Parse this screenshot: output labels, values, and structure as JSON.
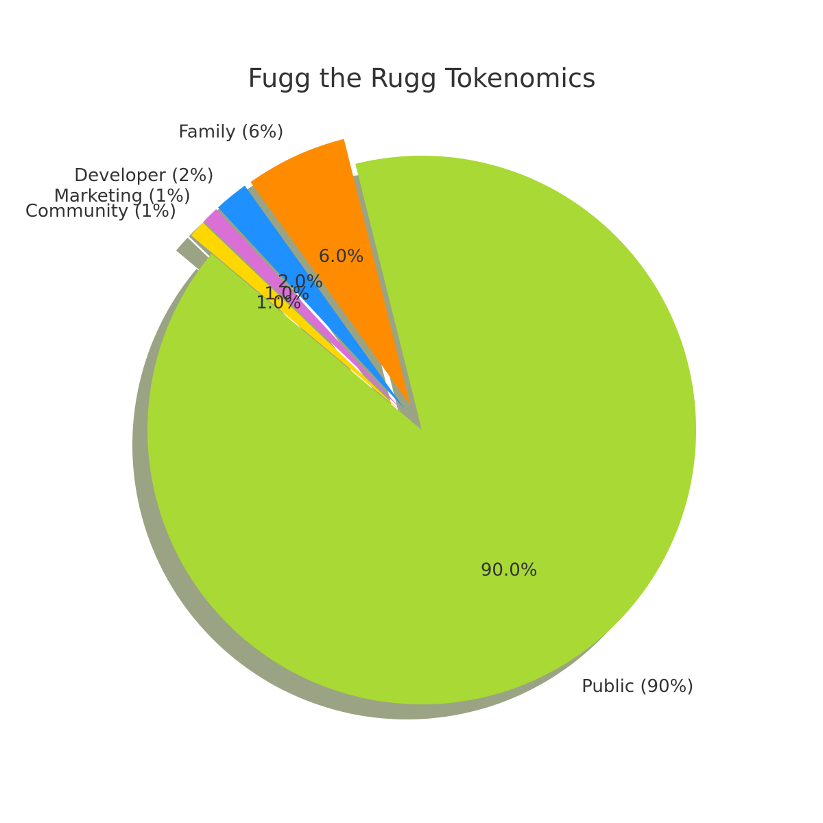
{
  "chart_data": {
    "type": "pie",
    "title": "Fugg the Rugg Tokenomics",
    "slices": [
      {
        "category": "Public",
        "value": 90,
        "label": "Public (90%)",
        "pct_label": "90.0%",
        "color": "#A8D935",
        "exploded": false
      },
      {
        "category": "Family",
        "value": 6,
        "label": "Family (6%)",
        "pct_label": "6.0%",
        "color": "#FF8C00",
        "exploded": true
      },
      {
        "category": "Developer",
        "value": 2,
        "label": "Developer (2%)",
        "pct_label": "2.0%",
        "color": "#1E90FF",
        "exploded": true
      },
      {
        "category": "Marketing",
        "value": 1,
        "label": "Marketing (1%)",
        "pct_label": "1.0%",
        "color": "#DA70D6",
        "exploded": true
      },
      {
        "category": "Community",
        "value": 1,
        "label": "Community (1%)",
        "pct_label": "1.0%",
        "color": "#FFD700",
        "exploded": true
      }
    ],
    "shadow": true,
    "start_angle_deg": 140,
    "direction": "counterclockwise"
  }
}
